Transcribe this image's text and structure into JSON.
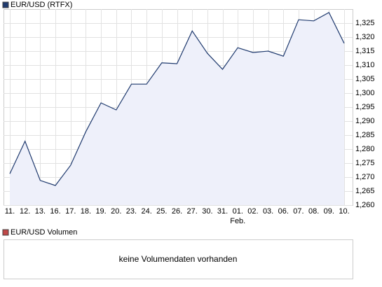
{
  "chart_data": {
    "type": "area",
    "categories": [
      "11.",
      "12.",
      "13.",
      "16.",
      "17.",
      "18.",
      "19.",
      "20.",
      "23.",
      "24.",
      "25.",
      "26.",
      "27.",
      "30.",
      "31.",
      "01.",
      "02.",
      "03.",
      "06.",
      "07.",
      "08.",
      "09.",
      "10."
    ],
    "annotations": [
      "Feb."
    ],
    "series": [
      {
        "name": "EUR/USD (RTFX)",
        "color": "#1f3a6e",
        "fill": "#eef0fa",
        "values": [
          1.2712,
          1.2828,
          1.2688,
          1.267,
          1.2742,
          1.2862,
          1.2965,
          1.294,
          1.3032,
          1.3032,
          1.3108,
          1.3105,
          1.3222,
          1.3142,
          1.3085,
          1.3162,
          1.3145,
          1.315,
          1.3132,
          1.3262,
          1.3258,
          1.3288,
          1.3178
        ]
      }
    ],
    "ylim": [
      1.26,
      1.33
    ],
    "yticks": [
      {
        "value": 1.26,
        "label": "1,260"
      },
      {
        "value": 1.265,
        "label": "1,265"
      },
      {
        "value": 1.27,
        "label": "1,270"
      },
      {
        "value": 1.275,
        "label": "1,275"
      },
      {
        "value": 1.28,
        "label": "1,280"
      },
      {
        "value": 1.285,
        "label": "1,285"
      },
      {
        "value": 1.29,
        "label": "1,290"
      },
      {
        "value": 1.295,
        "label": "1,295"
      },
      {
        "value": 1.3,
        "label": "1,300"
      },
      {
        "value": 1.305,
        "label": "1,305"
      },
      {
        "value": 1.31,
        "label": "1,310"
      },
      {
        "value": 1.315,
        "label": "1,315"
      },
      {
        "value": 1.32,
        "label": "1,320"
      },
      {
        "value": 1.325,
        "label": "1,325"
      }
    ],
    "grid": true
  },
  "volume_panel": {
    "legend": "EUR/USD Volumen",
    "legend_color": "#c04848",
    "message": "keine Volumendaten vorhanden"
  }
}
